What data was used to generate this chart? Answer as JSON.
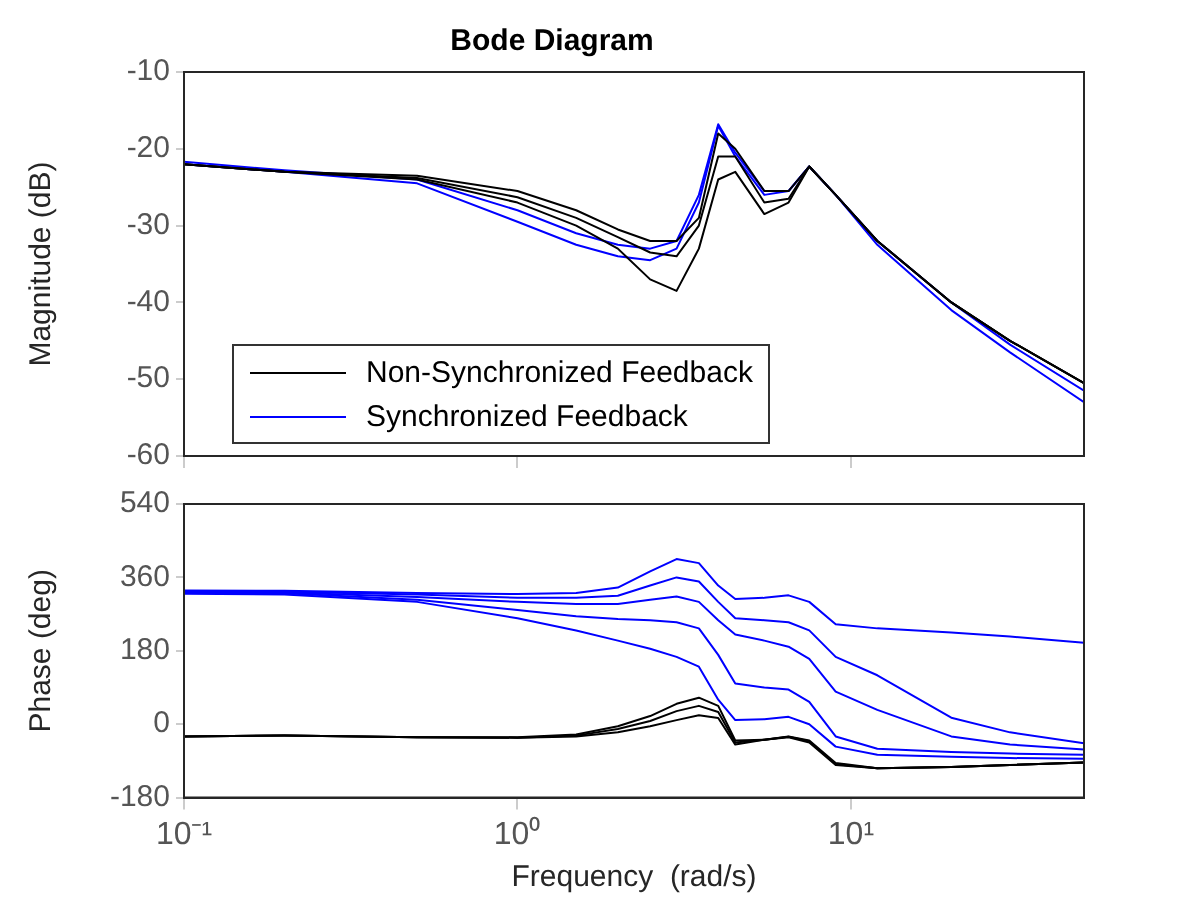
{
  "chart_data": [
    {
      "type": "line",
      "title": "Bode Diagram",
      "ylabel": "Magnitude (dB)",
      "log": "x",
      "grid": false,
      "legend": "bottom left",
      "tick_labels": "y",
      "marker": "none",
      "x": [
        0.1,
        0.2,
        0.5,
        1,
        1.5,
        2,
        2.5,
        3,
        3.5,
        4,
        4.5,
        5.5,
        6.5,
        7.5,
        9,
        12,
        20,
        30,
        50
      ],
      "xlim": [
        0.1,
        50
      ],
      "xticks": [
        {
          "value": 0.1,
          "label": null
        },
        {
          "value": 1,
          "label": null
        },
        {
          "value": 10,
          "label": null
        }
      ],
      "ylim": [
        -60,
        -10
      ],
      "yticks": [
        -60,
        -50,
        -40,
        -30,
        -20,
        -10
      ],
      "series": [
        {
          "name": "Non-Synchronized Feedback",
          "color": "#000000",
          "values": [
            -22,
            -23,
            -24,
            -27,
            -30,
            -33,
            -37,
            -38.5,
            -33,
            -24,
            -23,
            -28.5,
            -27,
            -22.3,
            -26,
            -32,
            -40,
            -45,
            -50.5
          ]
        },
        {
          "color": "#000000",
          "values": [
            -22,
            -23,
            -23.8,
            -26.3,
            -29,
            -31.5,
            -33.5,
            -34,
            -30,
            -21,
            -21,
            -27,
            -26.5,
            -22.3,
            -26,
            -32,
            -40,
            -45,
            -50.5
          ]
        },
        {
          "color": "#000000",
          "values": [
            -22,
            -23,
            -23.5,
            -25.5,
            -28,
            -30.5,
            -32,
            -32,
            -29,
            -18,
            -20,
            -25.5,
            -25.5,
            -22.3,
            -26,
            -32,
            -40,
            -45,
            -50.5
          ]
        },
        {
          "name": "Synchronized Feedback",
          "color": "#0000ff",
          "values": [
            -21.7,
            -22.8,
            -24,
            -28,
            -31,
            -32.5,
            -33,
            -32,
            -26,
            -16.8,
            -20.5,
            -25.5,
            -25.5,
            -22.3,
            -26,
            -32,
            -40,
            -45.5,
            -51.5
          ]
        },
        {
          "color": "#0000ff",
          "values": [
            -22,
            -23,
            -24.5,
            -29.5,
            -32.5,
            -34,
            -34.5,
            -33,
            -27,
            -17,
            -21,
            -26,
            -25.5,
            -22.3,
            -26,
            -32.5,
            -41,
            -46.5,
            -53
          ]
        }
      ]
    },
    {
      "type": "line",
      "xlabel": "Frequency  (rad/s)",
      "ylabel": "Phase (deg)",
      "log": "x",
      "grid": false,
      "marker": "none",
      "x": [
        0.1,
        0.2,
        0.5,
        1,
        1.5,
        2,
        2.5,
        3,
        3.5,
        4,
        4.5,
        5.5,
        6.5,
        7.5,
        9,
        12,
        20,
        30,
        50
      ],
      "xlim": [
        0.1,
        50
      ],
      "xticks": [
        {
          "value": 0.1,
          "label": "10⁻¹"
        },
        {
          "value": 1,
          "label": "10⁰"
        },
        {
          "value": 10,
          "label": "10¹"
        }
      ],
      "ylim": [
        -180,
        540
      ],
      "yticks": [
        -180,
        0,
        180,
        360,
        540
      ],
      "series": [
        {
          "color": "#000000",
          "values": [
            -30,
            -28,
            -32,
            -32,
            -25,
            -5,
            20,
            50,
            65,
            45,
            -40,
            -38,
            -30,
            -40,
            -95,
            -108,
            -105,
            -100,
            -94
          ]
        },
        {
          "color": "#000000",
          "values": [
            -30,
            -28,
            -32,
            -33,
            -28,
            -12,
            8,
            32,
            45,
            30,
            -45,
            -38,
            -31,
            -42,
            -98,
            -108,
            -105,
            -100,
            -94
          ]
        },
        {
          "color": "#000000",
          "values": [
            -30,
            -28,
            -32,
            -33,
            -30,
            -20,
            -5,
            10,
            22,
            15,
            -50,
            -38,
            -32,
            -45,
            -100,
            -108,
            -105,
            -100,
            -94
          ]
        },
        {
          "color": "#0000ff",
          "values": [
            328,
            327,
            322,
            319,
            322,
            335,
            375,
            405,
            395,
            340,
            307,
            310,
            316,
            300,
            245,
            235,
            225,
            215,
            200
          ]
        },
        {
          "color": "#0000ff",
          "values": [
            326,
            325,
            318,
            310,
            310,
            315,
            340,
            360,
            350,
            300,
            260,
            255,
            250,
            230,
            165,
            120,
            16,
            -20,
            -47
          ]
        },
        {
          "color": "#0000ff",
          "values": [
            324,
            323,
            312,
            300,
            295,
            295,
            305,
            313,
            300,
            255,
            220,
            205,
            190,
            160,
            80,
            35,
            -30,
            -50,
            -62
          ]
        },
        {
          "color": "#0000ff",
          "values": [
            322,
            321,
            305,
            280,
            265,
            258,
            255,
            250,
            235,
            170,
            100,
            90,
            85,
            55,
            -30,
            -60,
            -68,
            -72,
            -75
          ]
        },
        {
          "color": "#0000ff",
          "values": [
            320,
            318,
            300,
            260,
            230,
            205,
            185,
            165,
            141,
            60,
            10,
            12,
            18,
            0,
            -55,
            -75,
            -80,
            -83,
            -85
          ]
        }
      ]
    }
  ]
}
